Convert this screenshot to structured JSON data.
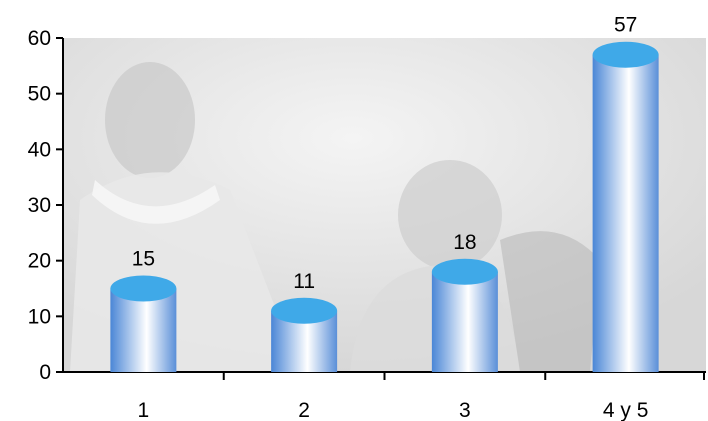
{
  "chart_data": {
    "type": "bar",
    "categories": [
      "1",
      "2",
      "3",
      "4 y 5"
    ],
    "values": [
      15,
      11,
      18,
      57
    ],
    "data_labels": [
      "15",
      "11",
      "18",
      "57"
    ],
    "y_ticks": [
      "0",
      "10",
      "20",
      "30",
      "40",
      "50",
      "60"
    ],
    "ylim": [
      0,
      60
    ],
    "title": "",
    "xlabel": "",
    "ylabel": "",
    "grid": false,
    "legend": "none",
    "bar_style": "3d-cylinder",
    "colors": {
      "bar_top": "#3fa9e8",
      "bar_side_dark": "#4a86d6",
      "bar_side_light": "#ffffff",
      "axis": "#000000",
      "background_photo": "#e3e3e3"
    },
    "background": "faded photo of a woman and a baby"
  }
}
